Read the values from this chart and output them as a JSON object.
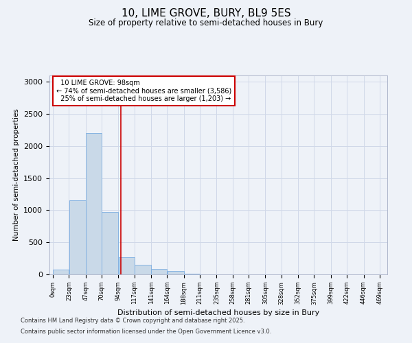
{
  "title_line1": "10, LIME GROVE, BURY, BL9 5ES",
  "title_line2": "Size of property relative to semi-detached houses in Bury",
  "xlabel": "Distribution of semi-detached houses by size in Bury",
  "ylabel": "Number of semi-detached properties",
  "bin_labels": [
    "0sqm",
    "23sqm",
    "47sqm",
    "70sqm",
    "94sqm",
    "117sqm",
    "141sqm",
    "164sqm",
    "188sqm",
    "211sqm",
    "235sqm",
    "258sqm",
    "281sqm",
    "305sqm",
    "328sqm",
    "352sqm",
    "375sqm",
    "399sqm",
    "422sqm",
    "446sqm",
    "469sqm"
  ],
  "bar_values": [
    70,
    1150,
    2200,
    975,
    270,
    150,
    90,
    50,
    15,
    5,
    0,
    0,
    0,
    0,
    0,
    0,
    0,
    0,
    0,
    0
  ],
  "bar_color": "#c9d9e8",
  "bar_edge_color": "#7aace0",
  "property_size": 98,
  "property_label": "10 LIME GROVE: 98sqm",
  "pct_smaller": 74,
  "n_smaller": "3,586",
  "pct_larger": 25,
  "n_larger": "1,203",
  "vline_color": "#cc0000",
  "annotation_box_color": "#cc0000",
  "ylim": [
    0,
    3100
  ],
  "yticks": [
    0,
    500,
    1000,
    1500,
    2000,
    2500,
    3000
  ],
  "grid_color": "#d0d8e8",
  "bg_color": "#eef2f8",
  "footnote1": "Contains HM Land Registry data © Crown copyright and database right 2025.",
  "footnote2": "Contains public sector information licensed under the Open Government Licence v3.0."
}
